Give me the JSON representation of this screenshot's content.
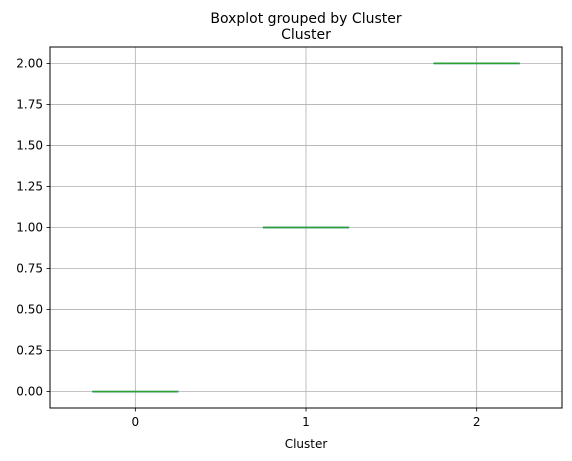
{
  "chart_data": {
    "type": "box",
    "suptitle": "Boxplot grouped by Cluster",
    "title": "Cluster",
    "xlabel": "Cluster",
    "ylabel": "",
    "categories": [
      "0",
      "1",
      "2"
    ],
    "boxes": [
      {
        "category": "0",
        "whislo": 0,
        "q1": 0,
        "median": 0,
        "q3": 0,
        "whishi": 0
      },
      {
        "category": "1",
        "whislo": 1,
        "q1": 1,
        "median": 1,
        "q3": 1,
        "whishi": 1
      },
      {
        "category": "2",
        "whislo": 2,
        "q1": 2,
        "median": 2,
        "q3": 2,
        "whishi": 2
      }
    ],
    "ylim": [
      -0.1,
      2.1
    ],
    "yticks": [
      0,
      0.25,
      0.5,
      0.75,
      1.0,
      1.25,
      1.5,
      1.75,
      2.0
    ],
    "ytick_labels": [
      "0.00",
      "0.25",
      "0.50",
      "0.75",
      "1.00",
      "1.25",
      "1.50",
      "1.75",
      "2.00"
    ],
    "grid": true,
    "colors": {
      "box": "#1f77b4",
      "median": "#2ca02c",
      "grid": "#b0b0b0",
      "axes": "#000000"
    }
  }
}
